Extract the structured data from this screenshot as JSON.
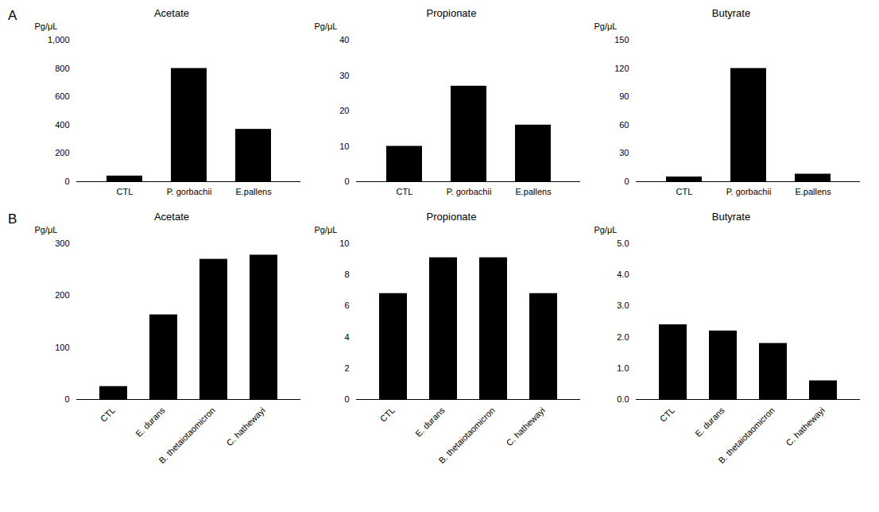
{
  "chart_data": [
    {
      "type": "bar",
      "annotation": "A",
      "title": "Acetate",
      "categories": [
        "CTL",
        "P. gorbachii",
        "E.pallens"
      ],
      "values": [
        40,
        800,
        370
      ],
      "ylabel": "Pg/μL",
      "ylim": [
        0,
        1000
      ],
      "yticks": [
        0,
        200,
        400,
        600,
        800,
        1000
      ],
      "color": "#000000",
      "grid": false
    },
    {
      "type": "bar",
      "title": "Propionate",
      "categories": [
        "CTL",
        "P. gorbachii",
        "E.pallens"
      ],
      "values": [
        10,
        27,
        16
      ],
      "ylabel": "Pg/μL",
      "ylim": [
        0,
        40
      ],
      "yticks": [
        0,
        10,
        20,
        30,
        40
      ],
      "color": "#000000",
      "grid": false
    },
    {
      "type": "bar",
      "title": "Butyrate",
      "categories": [
        "CTL",
        "P. gorbachii",
        "E.pallens"
      ],
      "values": [
        5,
        120,
        8
      ],
      "ylabel": "Pg/μL",
      "ylim": [
        0,
        150
      ],
      "yticks": [
        0,
        30,
        60,
        90,
        120,
        150
      ],
      "color": "#000000",
      "grid": false
    },
    {
      "type": "bar",
      "annotation": "B",
      "title": "Acetate",
      "categories": [
        "CTL",
        "E. durans",
        "B. thetaiotaomicron",
        "C. hathewayi"
      ],
      "values": [
        25,
        163,
        270,
        278
      ],
      "ylabel": "Pg/μL",
      "ylim": [
        0,
        300
      ],
      "yticks": [
        0,
        100,
        200,
        300
      ],
      "color": "#000000",
      "grid": false
    },
    {
      "type": "bar",
      "title": "Propionate",
      "categories": [
        "CTL",
        "E. durans",
        "B. thetaiotaomicron",
        "C. hathewayi"
      ],
      "values": [
        6.8,
        9.1,
        9.1,
        6.8
      ],
      "ylabel": "Pg/μL",
      "ylim": [
        0,
        10
      ],
      "yticks": [
        0,
        2,
        4,
        6,
        8,
        10
      ],
      "color": "#000000",
      "grid": false
    },
    {
      "type": "bar",
      "title": "Butyrate",
      "categories": [
        "CTL",
        "E. durans",
        "B. thetaiotaomicron",
        "C. hathewayi"
      ],
      "values": [
        2.4,
        2.2,
        1.8,
        0.6
      ],
      "ylabel": "Pg/μL",
      "ylim": [
        0,
        5
      ],
      "yticks": [
        0,
        1,
        2,
        3,
        4,
        5
      ],
      "color": "#000000",
      "grid": false
    }
  ]
}
